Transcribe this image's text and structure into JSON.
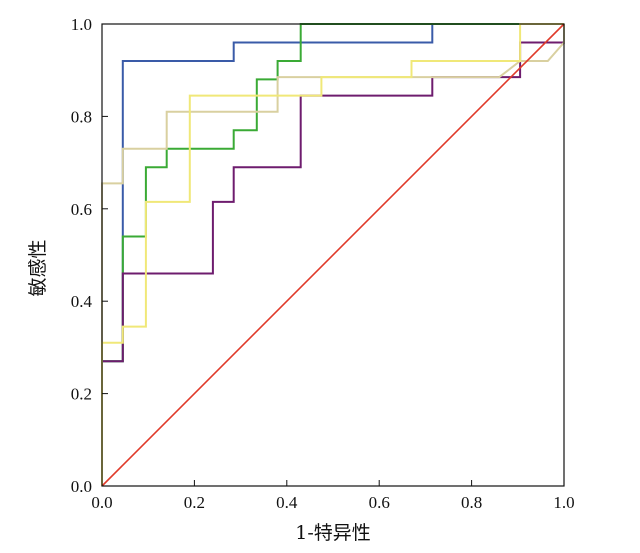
{
  "chart_data": {
    "type": "line",
    "title": "",
    "xlabel": "1-特异性",
    "ylabel": "敏感性",
    "xlim": [
      0.0,
      1.0
    ],
    "ylim": [
      0.0,
      1.0
    ],
    "xticks": [
      "0.0",
      "0.2",
      "0.4",
      "0.6",
      "0.8",
      "1.0"
    ],
    "yticks": [
      "0.0",
      "0.2",
      "0.4",
      "0.6",
      "0.8",
      "1.0"
    ],
    "grid": false,
    "legend": "none",
    "series": [
      {
        "color": "#3a5ba8",
        "step": true,
        "points": [
          [
            0.0,
            0.0
          ],
          [
            0.0,
            0.27
          ],
          [
            0.045,
            0.27
          ],
          [
            0.045,
            0.92
          ],
          [
            0.285,
            0.92
          ],
          [
            0.285,
            0.96
          ],
          [
            0.715,
            0.96
          ],
          [
            0.715,
            1.0
          ],
          [
            1.0,
            1.0
          ]
        ]
      },
      {
        "color": "#3aaa35",
        "step": true,
        "points": [
          [
            0.0,
            0.0
          ],
          [
            0.0,
            0.27
          ],
          [
            0.045,
            0.27
          ],
          [
            0.045,
            0.54
          ],
          [
            0.095,
            0.54
          ],
          [
            0.095,
            0.69
          ],
          [
            0.14,
            0.69
          ],
          [
            0.14,
            0.73
          ],
          [
            0.285,
            0.73
          ],
          [
            0.285,
            0.77
          ],
          [
            0.335,
            0.77
          ],
          [
            0.335,
            0.88
          ],
          [
            0.38,
            0.88
          ],
          [
            0.38,
            0.92
          ],
          [
            0.43,
            0.92
          ],
          [
            0.43,
            1.0
          ],
          [
            1.0,
            1.0
          ]
        ]
      },
      {
        "color": "#6e1c6e",
        "step": true,
        "points": [
          [
            0.0,
            0.0
          ],
          [
            0.0,
            0.27
          ],
          [
            0.045,
            0.27
          ],
          [
            0.045,
            0.46
          ],
          [
            0.24,
            0.46
          ],
          [
            0.24,
            0.615
          ],
          [
            0.285,
            0.615
          ],
          [
            0.285,
            0.69
          ],
          [
            0.43,
            0.69
          ],
          [
            0.43,
            0.845
          ],
          [
            0.715,
            0.845
          ],
          [
            0.715,
            0.885
          ],
          [
            0.905,
            0.885
          ],
          [
            0.905,
            0.96
          ],
          [
            1.0,
            0.96
          ],
          [
            1.0,
            1.0
          ]
        ]
      },
      {
        "color": "#d9d0a0",
        "step": true,
        "points": [
          [
            0.0,
            0.0
          ],
          [
            0.0,
            0.655
          ],
          [
            0.045,
            0.655
          ],
          [
            0.045,
            0.73
          ],
          [
            0.14,
            0.73
          ],
          [
            0.14,
            0.81
          ],
          [
            0.38,
            0.81
          ],
          [
            0.38,
            0.885
          ],
          [
            0.86,
            0.885
          ],
          [
            0.905,
            0.92
          ],
          [
            0.965,
            0.92
          ],
          [
            1.0,
            0.96
          ],
          [
            1.0,
            1.0
          ]
        ]
      },
      {
        "color": "#f0e878",
        "step": true,
        "points": [
          [
            0.0,
            0.0
          ],
          [
            0.0,
            0.31
          ],
          [
            0.045,
            0.31
          ],
          [
            0.045,
            0.345
          ],
          [
            0.095,
            0.345
          ],
          [
            0.095,
            0.615
          ],
          [
            0.19,
            0.615
          ],
          [
            0.19,
            0.845
          ],
          [
            0.475,
            0.845
          ],
          [
            0.475,
            0.885
          ],
          [
            0.67,
            0.885
          ],
          [
            0.67,
            0.92
          ],
          [
            0.905,
            0.92
          ],
          [
            0.905,
            1.0
          ],
          [
            1.0,
            1.0
          ]
        ]
      },
      {
        "color": "#e03a2a",
        "step": false,
        "points": [
          [
            0.0,
            0.0
          ],
          [
            1.0,
            1.0
          ]
        ]
      }
    ]
  }
}
